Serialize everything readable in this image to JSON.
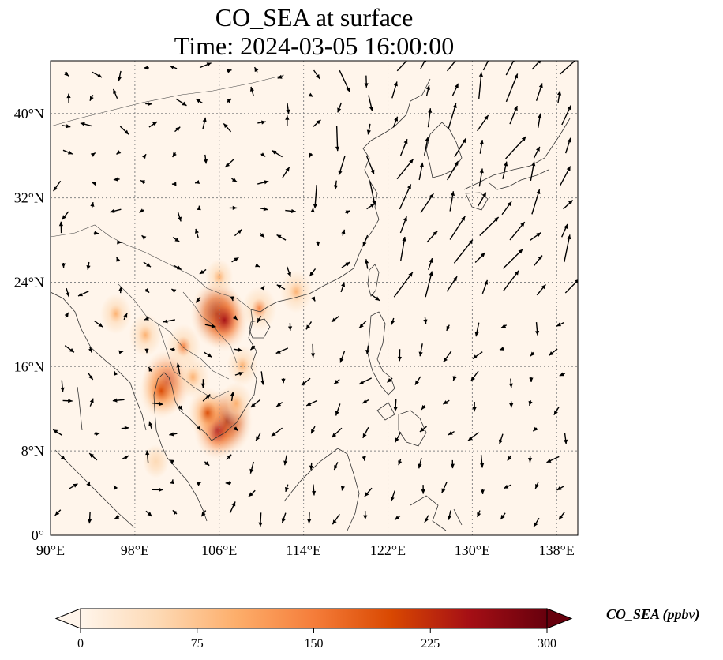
{
  "title": {
    "line1": "CO_SEA at surface",
    "line2": "Time: 2024-03-05 16:00:00"
  },
  "map": {
    "lon_range": [
      90,
      140
    ],
    "lat_range": [
      0,
      45
    ],
    "lon_ticks": [
      90,
      98,
      106,
      114,
      122,
      130,
      138
    ],
    "lat_ticks": [
      0,
      8,
      16,
      24,
      32,
      40
    ],
    "lon_tick_labels": [
      "90°E",
      "98°E",
      "106°E",
      "114°E",
      "122°E",
      "130°E",
      "138°E"
    ],
    "lat_tick_labels": [
      "0°",
      "8°N",
      "16°N",
      "24°N",
      "32°N",
      "40°N"
    ],
    "gridlines": true,
    "background_color": "#fff5eb",
    "hotspots": [
      {
        "lon": 105.8,
        "lat": 21.0,
        "intensity": 1.0
      },
      {
        "lon": 106.5,
        "lat": 20.4,
        "intensity": 0.85
      },
      {
        "lon": 106.7,
        "lat": 10.8,
        "intensity": 0.95
      },
      {
        "lon": 105.8,
        "lat": 10.0,
        "intensity": 0.8
      },
      {
        "lon": 101.0,
        "lat": 14.5,
        "intensity": 0.9
      },
      {
        "lon": 100.5,
        "lat": 13.7,
        "intensity": 0.7
      },
      {
        "lon": 104.9,
        "lat": 11.6,
        "intensity": 0.6
      },
      {
        "lon": 102.6,
        "lat": 17.9,
        "intensity": 0.45
      },
      {
        "lon": 99.0,
        "lat": 19.0,
        "intensity": 0.4
      },
      {
        "lon": 96.2,
        "lat": 21.0,
        "intensity": 0.35
      },
      {
        "lon": 108.2,
        "lat": 16.1,
        "intensity": 0.35
      },
      {
        "lon": 107.6,
        "lat": 12.5,
        "intensity": 0.4
      },
      {
        "lon": 103.5,
        "lat": 15.0,
        "intensity": 0.4
      },
      {
        "lon": 109.8,
        "lat": 21.5,
        "intensity": 0.45
      },
      {
        "lon": 113.3,
        "lat": 23.1,
        "intensity": 0.4
      },
      {
        "lon": 100.0,
        "lat": 7.0,
        "intensity": 0.2
      },
      {
        "lon": 106.0,
        "lat": 24.5,
        "intensity": 0.25
      }
    ]
  },
  "colorbar": {
    "label": "CO_SEA (ppbv)",
    "ticks": [
      "0",
      "75",
      "150",
      "225",
      "300"
    ],
    "range": [
      0,
      300
    ],
    "extend": "both",
    "colors": [
      "#fff5eb",
      "#fdd9b4",
      "#fdae6b",
      "#f57d3a",
      "#d94801",
      "#a50f15",
      "#67000d"
    ]
  }
}
